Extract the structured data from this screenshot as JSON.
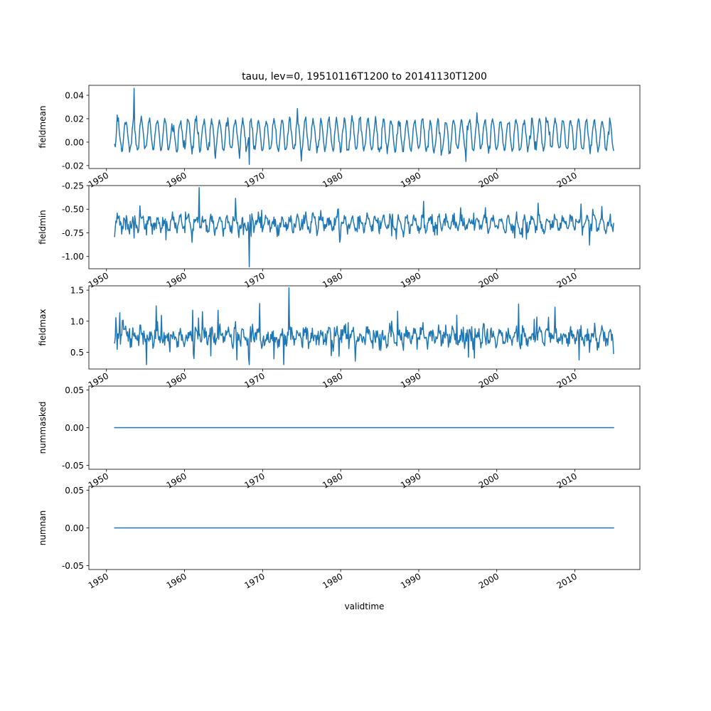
{
  "chart_data": {
    "type": "line",
    "title": "tauu, lev=0, 19510116T1200 to 20141130T1200",
    "xlabel": "validtime",
    "x_range": [
      "1951-01-16",
      "2014-11-30"
    ],
    "x_ticks": [
      "1950",
      "1960",
      "1970",
      "1980",
      "1990",
      "2000",
      "2010"
    ],
    "xlim": [
      "1947-10-01",
      "2018-05-01"
    ],
    "line_color": "#1f77b4",
    "grid": false,
    "legend": "none",
    "panels": [
      {
        "ylabel": "fieldmean",
        "ylim": [
          -0.0225,
          0.0485
        ],
        "yticks": [
          "-0.02",
          "0.00",
          "0.02",
          "0.04"
        ],
        "ytick_values": [
          -0.02,
          0.0,
          0.02,
          0.04
        ],
        "series": {
          "mean": 0.006,
          "amplitude": 0.013,
          "noise": 0.005,
          "min": -0.019,
          "max": 0.046,
          "start": -0.002,
          "end": -0.007
        }
      },
      {
        "ylabel": "fieldmin",
        "ylim": [
          -1.13,
          -0.25
        ],
        "yticks": [
          "-1.00",
          "-0.75",
          "-0.50",
          "-0.25"
        ],
        "ytick_values": [
          -1.0,
          -0.75,
          -0.5,
          -0.25
        ],
        "series": {
          "mean": -0.65,
          "amplitude": 0.06,
          "noise": 0.1,
          "min": -1.11,
          "max": -0.27,
          "start": -0.79,
          "end": -0.65
        }
      },
      {
        "ylabel": "fieldmax",
        "ylim": [
          0.23,
          1.57
        ],
        "yticks": [
          "0.5",
          "1.0",
          "1.5"
        ],
        "ytick_values": [
          0.5,
          1.0,
          1.5
        ],
        "series": {
          "mean": 0.75,
          "amplitude": 0.08,
          "noise": 0.22,
          "min": 0.3,
          "max": 1.54,
          "start": 0.65,
          "end": 0.48
        }
      },
      {
        "ylabel": "nummasked",
        "ylim": [
          -0.055,
          0.055
        ],
        "yticks": [
          "-0.05",
          "0.00",
          "0.05"
        ],
        "ytick_values": [
          -0.05,
          0.0,
          0.05
        ],
        "series": {
          "constant": 0.0
        }
      },
      {
        "ylabel": "numnan",
        "ylim": [
          -0.055,
          0.055
        ],
        "yticks": [
          "-0.05",
          "0.00",
          "0.05"
        ],
        "ytick_values": [
          -0.05,
          0.0,
          0.05
        ],
        "series": {
          "constant": 0.0
        }
      }
    ]
  }
}
